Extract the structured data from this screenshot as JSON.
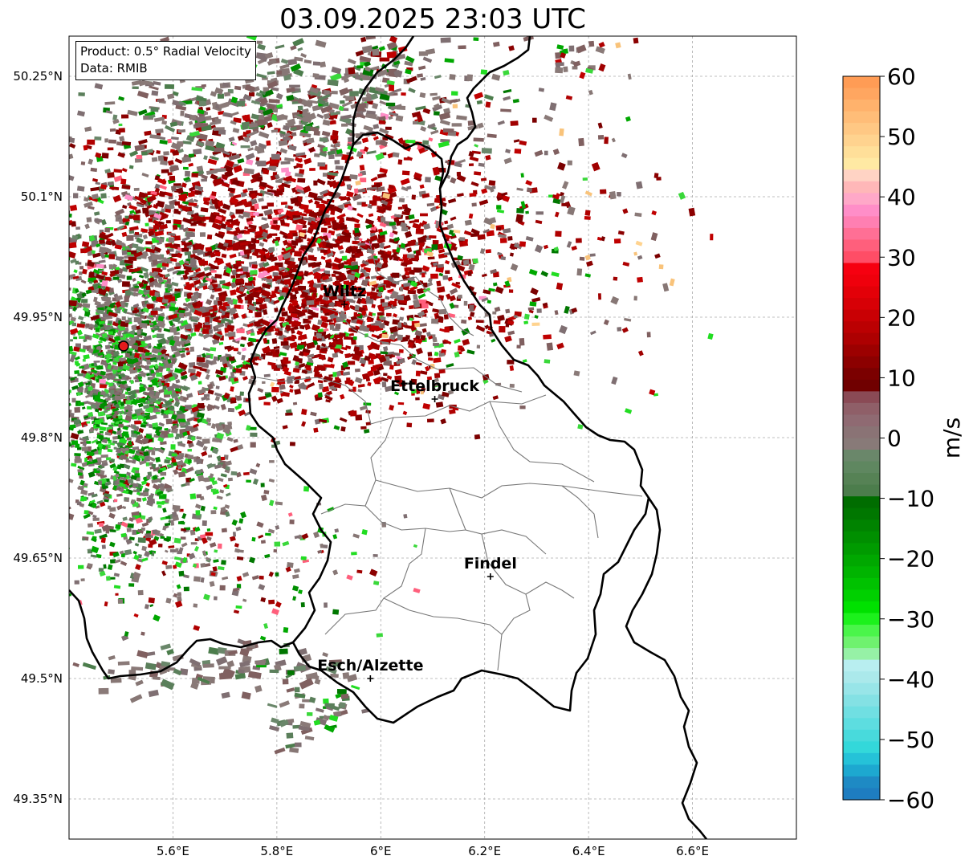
{
  "title": "03.09.2025 23:03 UTC",
  "info": {
    "product_line": "Product: 0.5° Radial Velocity",
    "data_line": "Data: RMIB"
  },
  "map": {
    "lon_range": [
      5.4,
      6.8
    ],
    "lat_range": [
      49.3,
      50.3
    ],
    "lat_ticks": [
      {
        "value": 50.25,
        "label": "50.25°N"
      },
      {
        "value": 50.1,
        "label": "50.1°N"
      },
      {
        "value": 49.95,
        "label": "49.95°N"
      },
      {
        "value": 49.8,
        "label": "49.8°N"
      },
      {
        "value": 49.65,
        "label": "49.65°N"
      },
      {
        "value": 49.5,
        "label": "49.5°N"
      },
      {
        "value": 49.35,
        "label": "49.35°N"
      }
    ],
    "lon_ticks": [
      {
        "value": 5.6,
        "label": "5.6°E"
      },
      {
        "value": 5.8,
        "label": "5.8°E"
      },
      {
        "value": 6.0,
        "label": "6°E"
      },
      {
        "value": 6.2,
        "label": "6.2°E"
      },
      {
        "value": 6.4,
        "label": "6.4°E"
      },
      {
        "value": 6.6,
        "label": "6.6°E"
      }
    ],
    "radar_site": {
      "lon": 5.505,
      "lat": 49.914
    },
    "cities": [
      {
        "name": "Wiltz",
        "lon": 5.93,
        "lat": 49.966
      },
      {
        "name": "Ettelbruck",
        "lon": 6.104,
        "lat": 49.848
      },
      {
        "name": "Findel",
        "lon": 6.211,
        "lat": 49.627
      },
      {
        "name": "Esch/Alzette",
        "lon": 5.98,
        "lat": 49.5
      }
    ]
  },
  "colorbar": {
    "label": "m/s",
    "vmin": -60,
    "vmax": 60,
    "ticks": [
      {
        "value": 60,
        "label": "60"
      },
      {
        "value": 50,
        "label": "50"
      },
      {
        "value": 40,
        "label": "40"
      },
      {
        "value": 30,
        "label": "30"
      },
      {
        "value": 20,
        "label": "20"
      },
      {
        "value": 10,
        "label": "10"
      },
      {
        "value": 0,
        "label": "0"
      },
      {
        "value": -10,
        "label": "−10"
      },
      {
        "value": -20,
        "label": "−20"
      },
      {
        "value": -30,
        "label": "−30"
      },
      {
        "value": -40,
        "label": "−40"
      },
      {
        "value": -50,
        "label": "−50"
      },
      {
        "value": -60,
        "label": "−60"
      }
    ],
    "colors_top_to_bottom": [
      "#ff9c55",
      "#ffa660",
      "#ffb26c",
      "#ffbd78",
      "#ffc884",
      "#ffd38f",
      "#ffdf99",
      "#ffe9a3",
      "#ffd3c4",
      "#ffb7b8",
      "#ffa8c8",
      "#ff8ec8",
      "#ff7fb2",
      "#ff6f95",
      "#ff5f7c",
      "#ff4d66",
      "#f60010",
      "#ef000c",
      "#e30008",
      "#d70006",
      "#c90004",
      "#bb0002",
      "#ad0001",
      "#9c0000",
      "#8c0000",
      "#7b0000",
      "#700000",
      "#8a4a55",
      "#8f5f68",
      "#8f6a72",
      "#8a7375",
      "#887a78",
      "#6a876a",
      "#5f8760",
      "#568255",
      "#4c7d4c",
      "#006d00",
      "#007700",
      "#008300",
      "#008f00",
      "#009b00",
      "#00a800",
      "#00b400",
      "#00c200",
      "#00d000",
      "#00e100",
      "#1cf11c",
      "#4af54a",
      "#6ff26f",
      "#96f1a6",
      "#b8eef0",
      "#abe9eb",
      "#98e5e8",
      "#84e1e4",
      "#70dfe2",
      "#5ddde0",
      "#48dadc",
      "#33d8da",
      "#25c2d8",
      "#1da8d0",
      "#1e8ac4",
      "#1e7dc0"
    ]
  },
  "colors": {
    "outbound_dark": "#8b0000",
    "outbound_red": "#b00000",
    "outbound_pink": "#ff5f7c",
    "outbound_light": "#f9c37a",
    "near_zero_grey": "#877775",
    "near_zero_green": "#5b7f5b",
    "inbound_dark": "#007700",
    "inbound_bright": "#22dd22",
    "inbound_cyan": "#55dddd",
    "radar_marker": "#e41a1c"
  }
}
